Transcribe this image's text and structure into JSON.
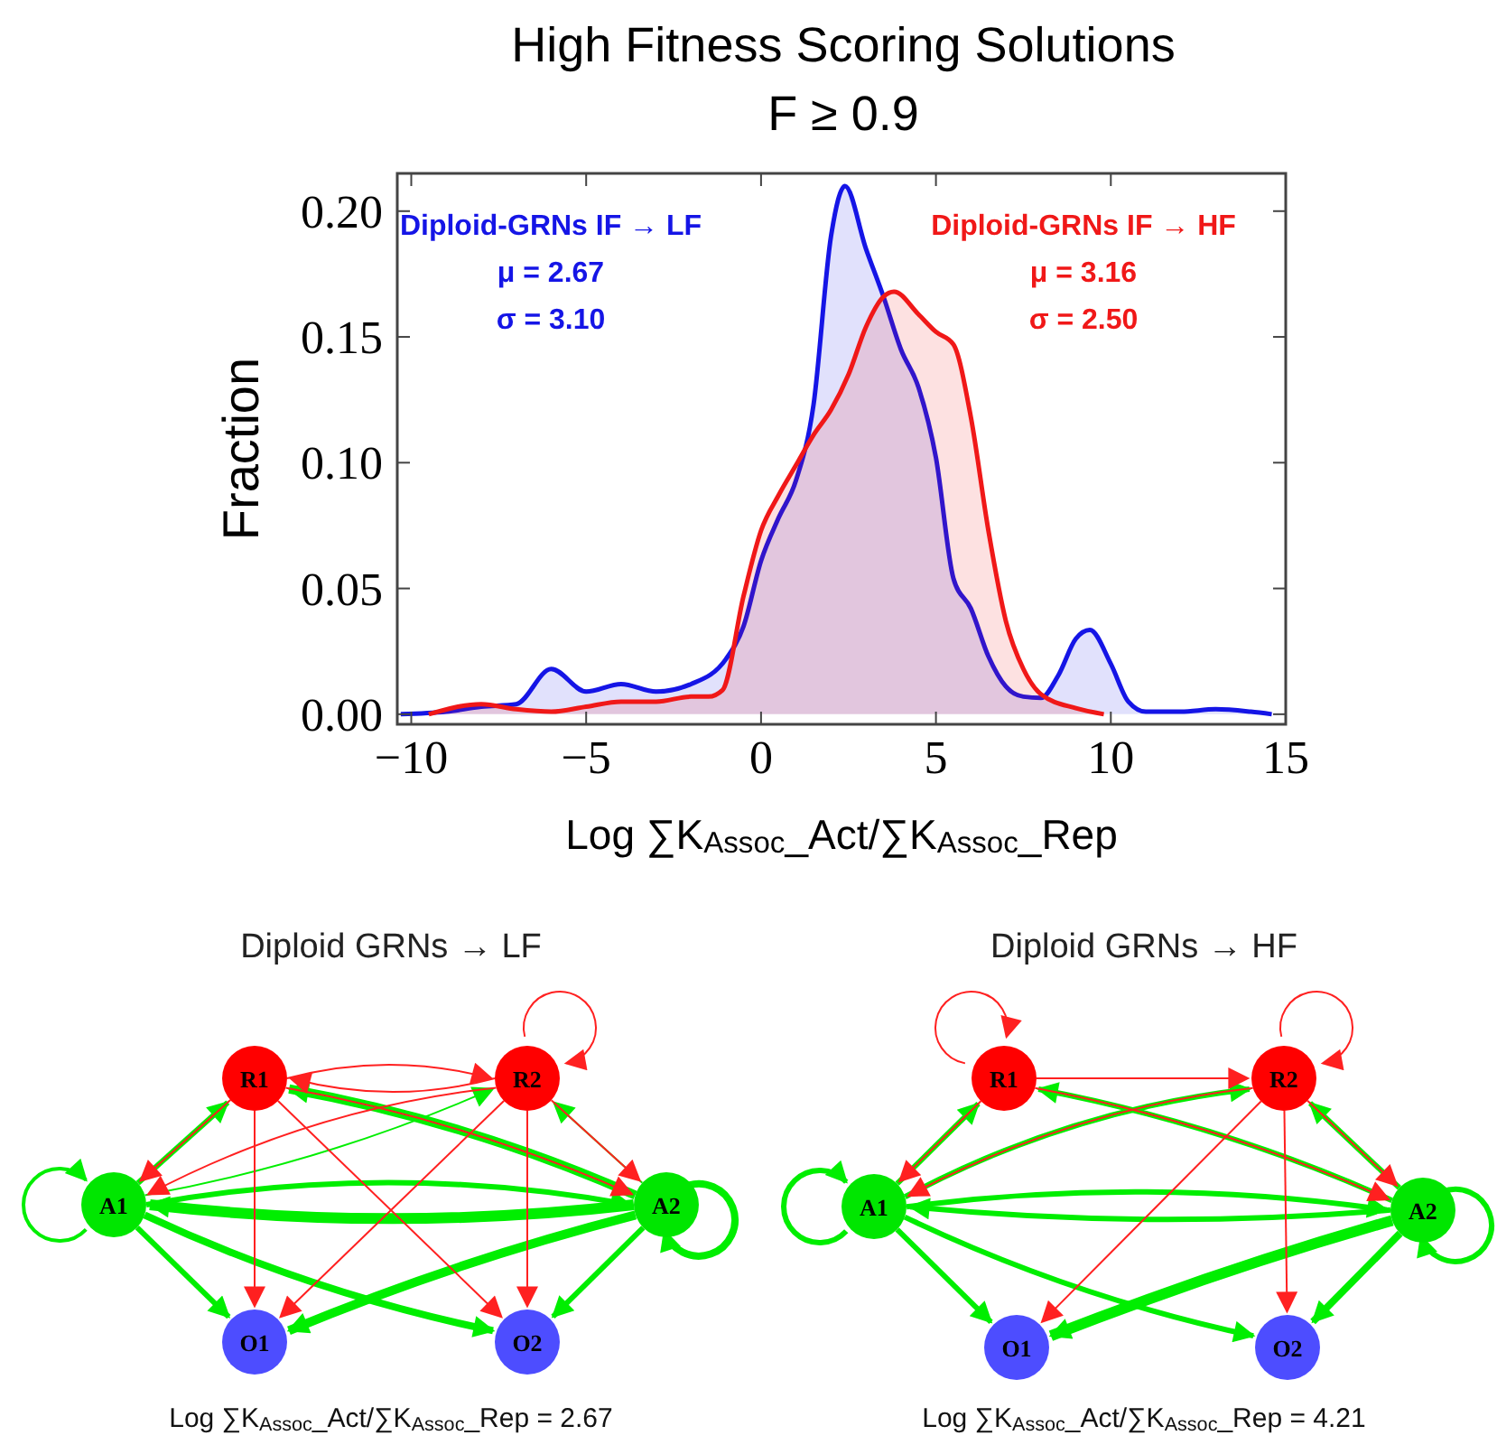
{
  "chart_data": [
    {
      "type": "area",
      "title": "High Fitness Scoring Solutions",
      "subtitle": "F  ≥ 0.9",
      "xlabel": "Log ∑K$_{Assoc}$_Act/∑K$_{Assoc}$_Rep",
      "ylabel": "Fraction",
      "xlim": [
        -10.4,
        15
      ],
      "ylim": [
        -0.004,
        0.215
      ],
      "xticks": [
        -10,
        -5,
        0,
        5,
        10,
        15
      ],
      "yticks": [
        {
          "value": 0,
          "label": "0.00"
        },
        {
          "value": 0.05,
          "label": "0.05"
        },
        {
          "value": 0.1,
          "label": "0.10"
        },
        {
          "value": 0.15,
          "label": "0.15"
        },
        {
          "value": 0.2,
          "label": "0.20"
        }
      ],
      "series": [
        {
          "name": "Diploid-GRNs IF → LF",
          "color": "#1515e6",
          "x": [
            -10.3,
            -9,
            -8,
            -7,
            -6,
            -5,
            -4,
            -3,
            -2,
            -1,
            -0.5,
            0,
            0.5,
            1,
            1.5,
            2,
            2.4,
            3,
            3.5,
            4,
            4.5,
            5,
            5.5,
            6,
            6.5,
            7,
            7.5,
            8,
            8.5,
            9,
            9.4,
            10,
            10.5,
            11,
            12,
            13,
            14,
            14.6
          ],
          "values": [
            0,
            0.001,
            0.003,
            0.004,
            0.018,
            0.009,
            0.012,
            0.009,
            0.012,
            0.022,
            0.035,
            0.061,
            0.078,
            0.093,
            0.123,
            0.19,
            0.21,
            0.185,
            0.166,
            0.145,
            0.13,
            0.102,
            0.054,
            0.042,
            0.023,
            0.011,
            0.007,
            0.0065,
            0.0155,
            0.03,
            0.0335,
            0.02,
            0.005,
            0.001,
            0.001,
            0.002,
            0.001,
            0
          ]
        },
        {
          "name": "Diploid-GRNs IF → HF",
          "color": "#f01818",
          "x": [
            -9.5,
            -8,
            -7,
            -6,
            -5,
            -4,
            -3,
            -2,
            -1.5,
            -1.1,
            -0.5,
            0,
            0.5,
            1,
            1.5,
            2,
            2.5,
            3,
            3.5,
            3.8,
            4.5,
            5,
            5.5,
            6,
            6.5,
            7,
            7.5,
            8,
            9,
            9.8
          ],
          "values": [
            0,
            0.004,
            0.002,
            0.001,
            0.003,
            0.005,
            0.005,
            0.007,
            0.007,
            0.0096,
            0.047,
            0.073,
            0.087,
            0.099,
            0.111,
            0.121,
            0.135,
            0.154,
            0.166,
            0.168,
            0.159,
            0.152,
            0.147,
            0.118,
            0.073,
            0.037,
            0.018,
            0.008,
            0.0024,
            0
          ]
        }
      ],
      "annotations": [
        "μ = 2.67",
        "σ = 3.10",
        "μ = 3.16",
        "σ = 2.50"
      ]
    },
    {
      "type": "other",
      "title": "Diploid GRNs → LF",
      "categories": [
        "R1",
        "R2",
        "A1",
        "A2",
        "O1",
        "O2"
      ],
      "colors": [
        "#ff0000",
        "#ff0000",
        "#00e600",
        "#00e600",
        "#4d4dff",
        "#4d4dff"
      ],
      "annotations": [
        "Log ∑K$_{Assoc}$_Act/∑K$_{Assoc}$_Rep = 2.67"
      ]
    },
    {
      "type": "other",
      "title": "Diploid GRNs → HF",
      "categories": [
        "R1",
        "R2",
        "A1",
        "A2",
        "O1",
        "O2"
      ],
      "colors": [
        "#ff0000",
        "#ff0000",
        "#00e600",
        "#00e600",
        "#4d4dff",
        "#4d4dff"
      ],
      "annotations": [
        "Log ∑K$_{Assoc}$_Act/∑K$_{Assoc}$_Rep  = 4.21"
      ]
    }
  ]
}
